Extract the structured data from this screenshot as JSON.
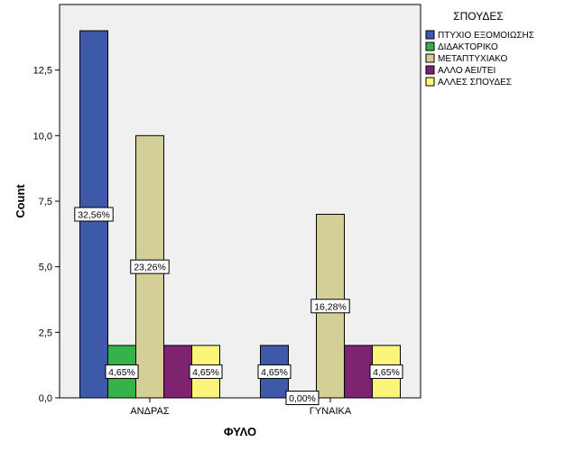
{
  "chart_data": {
    "type": "bar",
    "xlabel": "ΦΥΛΟ",
    "ylabel": "Count",
    "ylim": [
      0,
      15
    ],
    "yticks": [
      0,
      2.5,
      5,
      7.5,
      10,
      12.5
    ],
    "ytick_labels": [
      "0,0",
      "2,5",
      "5,0",
      "7,5",
      "10,0",
      "12,5"
    ],
    "grid": false,
    "legend_position": "right",
    "legend_title": "ΣΠΟΥΔΕΣ",
    "categories": [
      "ΑΝΔΡΑΣ",
      "ΓΥΝΑΙΚΑ"
    ],
    "series": [
      {
        "name": "ΠΤΥΧΙΟ ΕΞΟΜΟΙΩΣΗΣ",
        "color": "#3e59a7",
        "values": [
          14,
          2
        ],
        "labels": [
          "32,56%",
          "4,65%"
        ]
      },
      {
        "name": "ΔΙΔΑΚΤΟΡΙΚΟ",
        "color": "#35b34a",
        "values": [
          2,
          0
        ],
        "labels": [
          "4,65%",
          "0,00%"
        ]
      },
      {
        "name": "ΜΕΤΑΠΤΥΧΙΑΚΟ",
        "color": "#d4cf96",
        "values": [
          10,
          7
        ],
        "labels": [
          "23,26%",
          "16,28%"
        ]
      },
      {
        "name": "ΑΛΛΟ ΑΕΙ/ΤΕΙ",
        "color": "#7d2370",
        "values": [
          2,
          2
        ],
        "labels": [
          "",
          ""
        ]
      },
      {
        "name": "ΑΛΛΕΣ ΣΠΟΥΔΕΣ",
        "color": "#fbf67a",
        "values": [
          2,
          2
        ],
        "labels": [
          "4,65%",
          "4,65%"
        ]
      }
    ]
  }
}
